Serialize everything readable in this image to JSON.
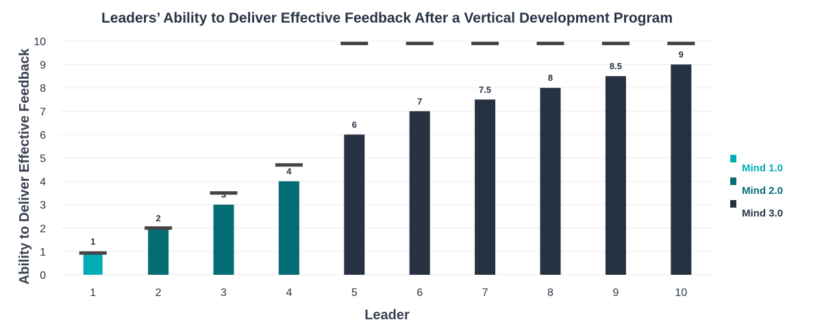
{
  "chart_data": {
    "type": "bar",
    "title": "Leaders’ Ability to Deliver Effective Feedback After a Vertical Development Program",
    "xlabel": "Leader",
    "ylabel": "Ability to Deliver Effective Feedback",
    "ylim": [
      0,
      10
    ],
    "yticks": [
      "0",
      "1",
      "2",
      "3",
      "4",
      "5",
      "6",
      "7",
      "8",
      "9",
      "10"
    ],
    "categories": [
      "1",
      "2",
      "3",
      "4",
      "5",
      "6",
      "7",
      "8",
      "9",
      "10"
    ],
    "values": [
      1,
      2,
      3,
      4,
      6,
      7,
      7.5,
      8,
      8.5,
      9
    ],
    "data_labels": [
      "1",
      "2",
      "3",
      "4",
      "6",
      "7",
      "7.5",
      "8",
      "8.5",
      "9"
    ],
    "groups": [
      "Mind 1.0",
      "Mind 2.0",
      "Mind 2.0",
      "Mind 2.0",
      "Mind 3.0",
      "Mind 3.0",
      "Mind 3.0",
      "Mind 3.0",
      "Mind 3.0",
      "Mind 3.0"
    ],
    "markers": [
      0.93,
      2.0,
      3.5,
      4.7,
      9.9,
      9.9,
      9.9,
      9.9,
      9.9,
      9.9
    ],
    "grid": true,
    "legend_position": "right",
    "legend": [
      {
        "name": "Mind 1.0",
        "color": "#00adb5"
      },
      {
        "name": "Mind 2.0",
        "color": "#036c74"
      },
      {
        "name": "Mind 3.0",
        "color": "#263141"
      }
    ],
    "marker_color": "#444444"
  }
}
